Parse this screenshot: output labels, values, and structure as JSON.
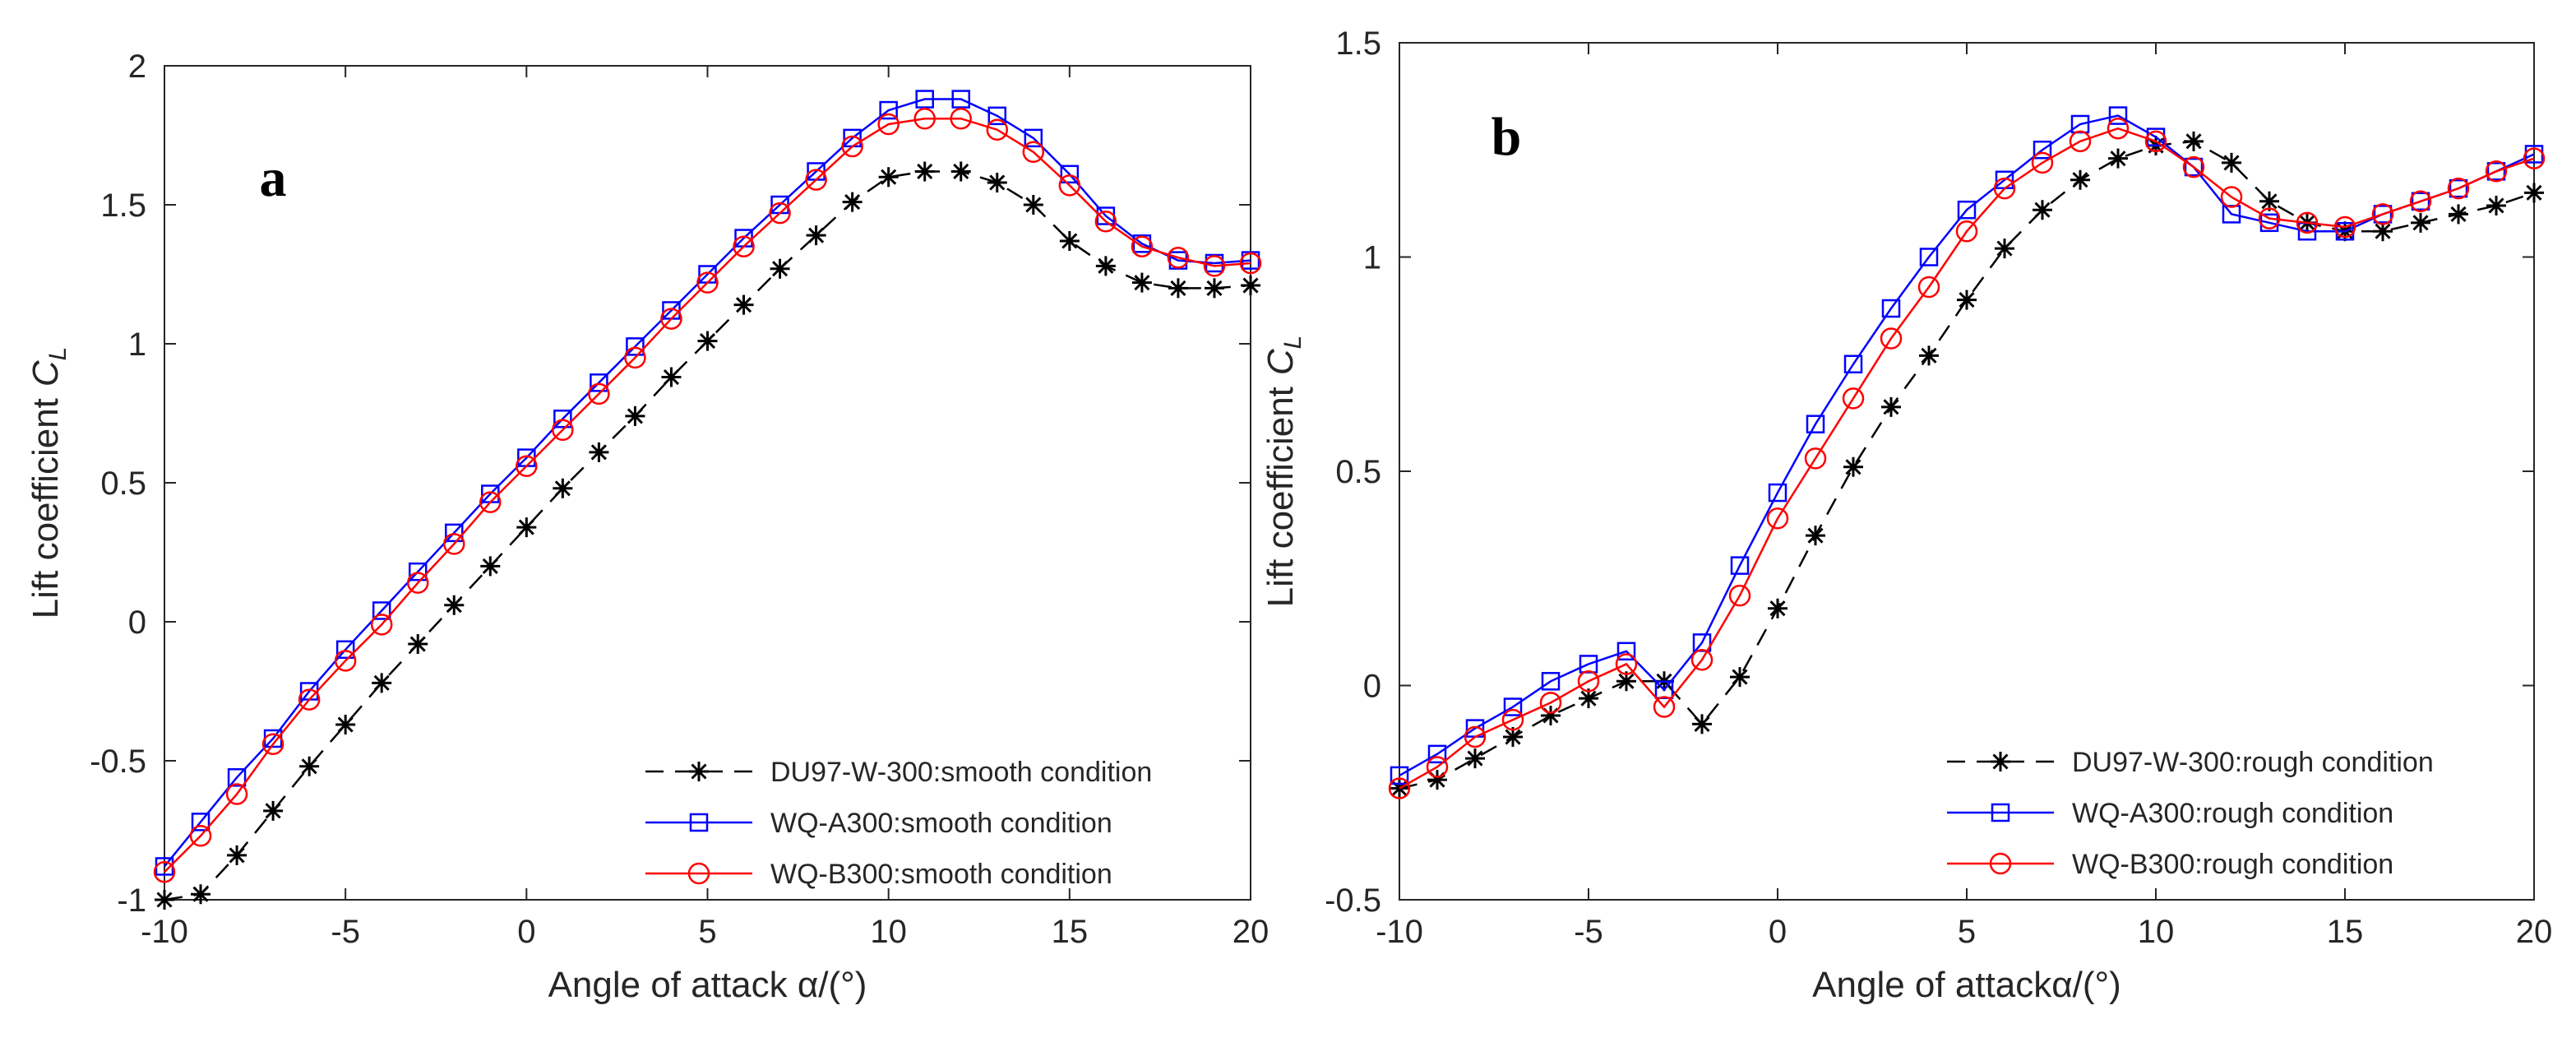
{
  "colors": {
    "axis": "#262626",
    "DU97-W-300": "#000000",
    "WQ-A300": "#0000ff",
    "WQ-B300": "#ff0000"
  },
  "chart_data": [
    {
      "type": "line",
      "panel": "a",
      "xlabel": "Angle of attack α/(°)",
      "ylabel": "Lift coefficient",
      "ylabel_symbol": "C",
      "ylabel_sub": "L",
      "xlim": [
        -10,
        20
      ],
      "ylim": [
        -1,
        2
      ],
      "xticks": [
        "-10",
        "-5",
        "0",
        "5",
        "10",
        "15",
        "20"
      ],
      "yticks": [
        "-1",
        "-0.5",
        "0",
        "0.5",
        "1",
        "1.5",
        "2"
      ],
      "grid": false,
      "legend_position": "bottom-right",
      "x": [
        -10,
        -9,
        -8,
        -7,
        -6,
        -5,
        -4,
        -3,
        -2,
        -1,
        0,
        1,
        2,
        3,
        4,
        5,
        6,
        7,
        8,
        9,
        10,
        11,
        12,
        13,
        14,
        15,
        16,
        17,
        18,
        19,
        20
      ],
      "series": [
        {
          "name": "DU97-W-300:smooth condition",
          "key": "DU97-W-300",
          "marker": "star",
          "dash": "dashed",
          "values": [
            -1.0,
            -0.98,
            -0.84,
            -0.68,
            -0.52,
            -0.37,
            -0.22,
            -0.08,
            0.06,
            0.2,
            0.34,
            0.48,
            0.61,
            0.74,
            0.88,
            1.01,
            1.14,
            1.27,
            1.39,
            1.51,
            1.6,
            1.62,
            1.62,
            1.58,
            1.5,
            1.37,
            1.28,
            1.22,
            1.2,
            1.2,
            1.21
          ]
        },
        {
          "name": "WQ-A300:smooth condition",
          "key": "WQ-A300",
          "marker": "square",
          "dash": "solid",
          "values": [
            -0.88,
            -0.72,
            -0.56,
            -0.42,
            -0.25,
            -0.1,
            0.04,
            0.18,
            0.32,
            0.46,
            0.59,
            0.73,
            0.86,
            0.99,
            1.12,
            1.25,
            1.38,
            1.5,
            1.62,
            1.74,
            1.84,
            1.88,
            1.88,
            1.82,
            1.74,
            1.61,
            1.46,
            1.36,
            1.3,
            1.29,
            1.3
          ]
        },
        {
          "name": "WQ-B300:smooth condition",
          "key": "WQ-B300",
          "marker": "circle",
          "dash": "solid",
          "values": [
            -0.9,
            -0.77,
            -0.62,
            -0.44,
            -0.28,
            -0.14,
            -0.01,
            0.14,
            0.28,
            0.43,
            0.56,
            0.69,
            0.82,
            0.95,
            1.09,
            1.22,
            1.35,
            1.47,
            1.59,
            1.71,
            1.79,
            1.81,
            1.81,
            1.77,
            1.69,
            1.57,
            1.44,
            1.35,
            1.31,
            1.28,
            1.29
          ]
        }
      ]
    },
    {
      "type": "line",
      "panel": "b",
      "xlabel": "Angle of attackα/(°)",
      "ylabel": "Lift coefficient",
      "ylabel_symbol": "C",
      "ylabel_sub": "L",
      "xlim": [
        -10,
        20
      ],
      "ylim": [
        -0.5,
        1.5
      ],
      "xticks": [
        "-10",
        "-5",
        "0",
        "5",
        "10",
        "15",
        "20"
      ],
      "yticks": [
        "-0.5",
        "0",
        "0.5",
        "1",
        "1.5"
      ],
      "grid": false,
      "legend_position": "bottom-right",
      "x": [
        -10,
        -9,
        -8,
        -7,
        -6,
        -5,
        -4,
        -3,
        -2,
        -1,
        0,
        1,
        2,
        3,
        4,
        5,
        6,
        7,
        8,
        9,
        10,
        11,
        12,
        13,
        14,
        15,
        16,
        17,
        18,
        19,
        20
      ],
      "series": [
        {
          "name": "DU97-W-300:rough condition",
          "key": "DU97-W-300",
          "marker": "star",
          "dash": "dashed",
          "values": [
            -0.24,
            -0.22,
            -0.17,
            -0.12,
            -0.07,
            -0.03,
            0.01,
            0.01,
            -0.09,
            0.02,
            0.18,
            0.35,
            0.51,
            0.65,
            0.77,
            0.9,
            1.02,
            1.11,
            1.18,
            1.23,
            1.26,
            1.27,
            1.22,
            1.13,
            1.08,
            1.06,
            1.06,
            1.08,
            1.1,
            1.12,
            1.15
          ]
        },
        {
          "name": "WQ-A300:rough condition",
          "key": "WQ-A300",
          "marker": "square",
          "dash": "solid",
          "values": [
            -0.21,
            -0.16,
            -0.1,
            -0.05,
            0.01,
            0.05,
            0.08,
            -0.01,
            0.1,
            0.28,
            0.45,
            0.61,
            0.75,
            0.88,
            1.0,
            1.11,
            1.18,
            1.25,
            1.31,
            1.33,
            1.28,
            1.21,
            1.1,
            1.08,
            1.06,
            1.06,
            1.1,
            1.13,
            1.16,
            1.2,
            1.24
          ]
        },
        {
          "name": "WQ-B300:rough condition",
          "key": "WQ-B300",
          "marker": "circle",
          "dash": "solid",
          "values": [
            -0.24,
            -0.19,
            -0.12,
            -0.08,
            -0.04,
            0.01,
            0.05,
            -0.05,
            0.06,
            0.21,
            0.39,
            0.53,
            0.67,
            0.81,
            0.93,
            1.06,
            1.16,
            1.22,
            1.27,
            1.3,
            1.27,
            1.21,
            1.14,
            1.09,
            1.08,
            1.07,
            1.1,
            1.13,
            1.16,
            1.2,
            1.23
          ]
        }
      ]
    }
  ]
}
